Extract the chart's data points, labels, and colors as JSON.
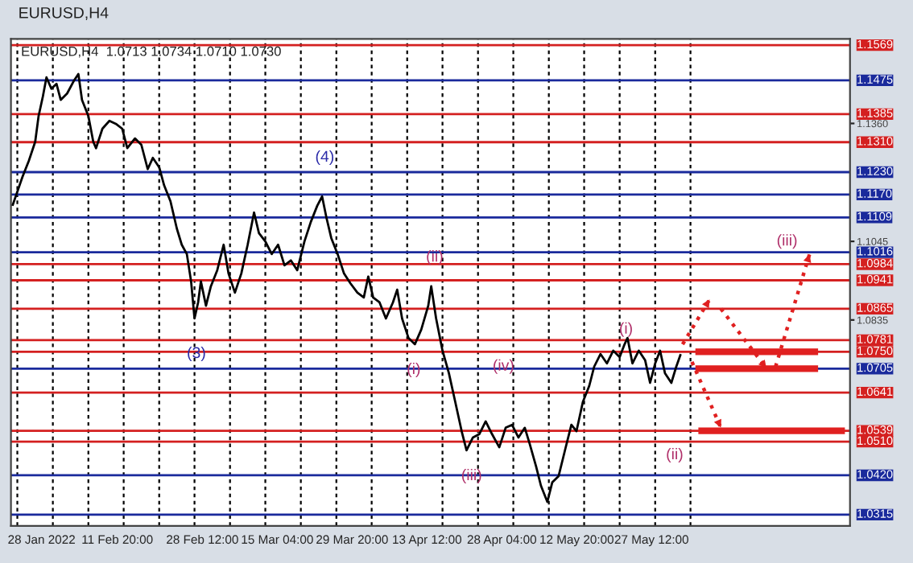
{
  "chart_data": {
    "type": "line",
    "title": "EURUSD,H4",
    "annotations": [
      "EURUSD,H4  1.0713 1.0734 1.0710 1.0730",
      "(4)",
      "(3)",
      "(ii)",
      "(i)",
      "(iv)",
      "(iii)",
      "(i)",
      "(ii)",
      "(iii)"
    ],
    "xlim": [
      "2022-01-22T00:00",
      "2022-07-05T09:00"
    ],
    "ylim": [
      1.0285,
      1.1586
    ],
    "xticks": [
      {
        "value": "2022-01-28T00:00",
        "label": "28 Jan 2022"
      },
      {
        "value": "2022-02-11T20:00",
        "label": "11 Feb 20:00"
      },
      {
        "value": "2022-02-28T12:00",
        "label": "28 Feb 12:00"
      },
      {
        "value": "2022-03-15T04:00",
        "label": "15 Mar 04:00"
      },
      {
        "value": "2022-03-29T20:00",
        "label": "29 Mar 20:00"
      },
      {
        "value": "2022-04-13T12:00",
        "label": "13 Apr 12:00"
      },
      {
        "value": "2022-04-28T04:00",
        "label": "28 Apr 04:00"
      },
      {
        "value": "2022-05-12T20:00",
        "label": "12 May 20:00"
      },
      {
        "value": "2022-05-27T12:00",
        "label": "27 May 12:00"
      },
      {
        "value": "2022-01-23T06:00",
        "label": null
      },
      {
        "value": "2022-01-30T05:00",
        "label": null
      },
      {
        "value": "2022-02-06T04:00",
        "label": null
      },
      {
        "value": "2022-02-13T02:00",
        "label": null
      },
      {
        "value": "2022-02-20T01:00",
        "label": null
      },
      {
        "value": "2022-02-26T23:00",
        "label": null
      },
      {
        "value": "2022-03-05T22:00",
        "label": null
      },
      {
        "value": "2022-03-12T20:00",
        "label": null
      },
      {
        "value": "2022-03-19T19:00",
        "label": null
      },
      {
        "value": "2022-03-26T18:00",
        "label": null
      },
      {
        "value": "2022-04-02T16:00",
        "label": null
      },
      {
        "value": "2022-04-09T15:00",
        "label": null
      },
      {
        "value": "2022-04-16T13:00",
        "label": null
      },
      {
        "value": "2022-04-23T12:00",
        "label": null
      },
      {
        "value": "2022-04-30T10:00",
        "label": null
      },
      {
        "value": "2022-05-07T09:00",
        "label": null
      },
      {
        "value": "2022-05-14T07:00",
        "label": null
      },
      {
        "value": "2022-05-21T06:00",
        "label": null
      },
      {
        "value": "2022-05-28T05:00",
        "label": null
      },
      {
        "value": "2022-06-04T03:00",
        "label": null
      }
    ],
    "yticks": [
      {
        "value": 1.136,
        "label": "1.1360"
      },
      1.1045,
      1.0835
    ],
    "grid": "x",
    "marker": "none",
    "ref_lines": [
      {
        "axis": "y",
        "value": 1.1569,
        "label": "1.1569",
        "color": "#d42020"
      },
      {
        "axis": "y",
        "value": 1.1475,
        "label": "1.1475",
        "color": "#1a2a9c"
      },
      {
        "axis": "y",
        "value": 1.1385,
        "label": "1.1385",
        "color": "#d42020"
      },
      {
        "axis": "y",
        "value": 1.131,
        "label": "1.1310",
        "color": "#d42020"
      },
      {
        "axis": "y",
        "value": 1.123,
        "label": "1.1230",
        "color": "#1a2a9c"
      },
      {
        "axis": "y",
        "value": 1.117,
        "label": "1.1170",
        "color": "#1a2a9c"
      },
      {
        "axis": "y",
        "value": 1.1109,
        "label": "1.1109",
        "color": "#1a2a9c"
      },
      {
        "axis": "y",
        "value": 1.1016,
        "label": "1.1016",
        "color": "#1a2a9c"
      },
      {
        "axis": "y",
        "value": 1.0984,
        "label": "1.0984",
        "color": "#d42020"
      },
      {
        "axis": "y",
        "value": 1.0941,
        "label": "1.0941",
        "color": "#d42020"
      },
      {
        "axis": "y",
        "value": 1.0865,
        "label": "1.0865",
        "color": "#d42020"
      },
      {
        "axis": "y",
        "value": 1.0781,
        "label": "1.0781",
        "color": "#d42020"
      },
      {
        "axis": "y",
        "value": 1.075,
        "label": "1.0750",
        "color": "#d42020"
      },
      {
        "axis": "y",
        "value": 1.0705,
        "label": "1.0705",
        "color": "#1a2a9c"
      },
      {
        "axis": "y",
        "value": 1.0641,
        "label": "1.0641",
        "color": "#d42020"
      },
      {
        "axis": "y",
        "value": 1.0539,
        "label": "1.0539",
        "color": "#d42020"
      },
      {
        "axis": "y",
        "value": 1.051,
        "label": "1.0510",
        "color": "#d42020"
      },
      {
        "axis": "y",
        "value": 1.042,
        "label": "1.0420",
        "color": "#1a2a9c"
      },
      {
        "axis": "y",
        "value": 1.0315,
        "label": "1.0315",
        "color": "#1a2a9c"
      }
    ],
    "series": [
      {
        "color": "#000000",
        "line_style": "solid",
        "x": [
          "2022-01-22T07:00",
          "2022-01-24T06:00",
          "2022-01-25T12:00",
          "2022-01-26T18:00",
          "2022-01-27T10:00",
          "2022-01-28T06:00",
          "2022-01-28T23:00",
          "2022-01-29T22:00",
          "2022-01-30T22:00",
          "2022-01-31T18:00",
          "2022-02-02T00:00",
          "2022-02-03T09:00",
          "2022-02-04T05:00",
          "2022-02-04T22:00",
          "2022-02-06T04:00",
          "2022-02-07T03:00",
          "2022-02-07T16:00",
          "2022-02-08T22:00",
          "2022-02-10T07:00",
          "2022-02-11T13:00",
          "2022-02-12T19:00",
          "2022-02-13T19:00",
          "2022-02-15T07:00",
          "2022-02-16T13:00",
          "2022-02-17T19:00",
          "2022-02-18T19:00",
          "2022-02-20T01:00",
          "2022-02-21T00:00",
          "2022-02-22T06:00",
          "2022-02-23T12:00",
          "2022-02-24T11:00",
          "2022-02-25T11:00",
          "2022-02-26T07:00",
          "2022-02-26T23:00",
          "2022-02-27T16:00",
          "2022-02-28T05:00",
          "2022-03-01T05:00",
          "2022-03-02T04:00",
          "2022-03-03T10:00",
          "2022-03-04T16:00",
          "2022-03-05T15:00",
          "2022-03-06T21:00",
          "2022-03-08T03:00",
          "2022-03-09T09:00",
          "2022-03-10T15:00",
          "2022-03-11T14:00",
          "2022-03-12T20:00",
          "2022-03-14T02:00",
          "2022-03-15T08:00",
          "2022-03-16T14:00",
          "2022-03-17T20:00",
          "2022-03-19T02:00",
          "2022-03-20T12:00",
          "2022-03-21T18:00",
          "2022-03-23T00:00",
          "2022-03-23T23:00",
          "2022-03-24T19:00",
          "2022-03-25T18:00",
          "2022-03-27T00:00",
          "2022-03-28T06:00",
          "2022-03-29T12:00",
          "2022-03-30T21:00",
          "2022-04-01T03:00",
          "2022-04-02T00:00",
          "2022-04-02T23:00",
          "2022-04-04T05:00",
          "2022-04-05T11:00",
          "2022-04-06T20:00",
          "2022-04-07T16:00",
          "2022-04-08T15:00",
          "2022-04-09T21:00",
          "2022-04-11T03:00",
          "2022-04-12T09:00",
          "2022-04-13T18:00",
          "2022-04-14T08:00",
          "2022-04-15T07:00",
          "2022-04-16T13:00",
          "2022-04-17T19:00",
          "2022-04-19T01:00",
          "2022-04-20T07:00",
          "2022-04-21T06:00",
          "2022-04-22T12:00",
          "2022-04-23T18:00",
          "2022-04-25T00:00",
          "2022-04-26T06:00",
          "2022-04-27T16:00",
          "2022-04-28T22:00",
          "2022-04-30T04:00",
          "2022-05-01T10:00",
          "2022-05-02T16:00",
          "2022-05-03T15:00",
          "2022-05-04T21:00",
          "2022-05-05T20:00",
          "2022-05-07T02:00",
          "2022-05-08T01:00",
          "2022-05-09T07:00",
          "2022-05-10T13:00",
          "2022-05-11T19:00",
          "2022-05-12T19:00",
          "2022-05-14T01:00",
          "2022-05-15T07:00",
          "2022-05-16T06:00",
          "2022-05-17T12:00",
          "2022-05-18T18:00",
          "2022-05-20T00:00",
          "2022-05-21T06:00",
          "2022-05-22T05:00",
          "2022-05-22T19:00",
          "2022-05-23T18:00",
          "2022-05-25T00:00",
          "2022-05-26T06:00",
          "2022-05-27T05:00",
          "2022-05-28T05:00",
          "2022-05-29T04:00",
          "2022-05-30T03:00",
          "2022-05-31T09:00",
          "2022-06-01T08:00",
          "2022-06-02T05:00"
        ],
        "values": [
          1.114,
          1.1217,
          1.126,
          1.1311,
          1.138,
          1.1432,
          1.1483,
          1.1453,
          1.1466,
          1.1423,
          1.144,
          1.1475,
          1.1492,
          1.1423,
          1.138,
          1.1311,
          1.1294,
          1.1346,
          1.1367,
          1.1359,
          1.1346,
          1.1294,
          1.132,
          1.1303,
          1.1238,
          1.1268,
          1.1243,
          1.1195,
          1.1152,
          1.1079,
          1.1036,
          1.1011,
          1.0938,
          1.0839,
          1.0882,
          1.0938,
          1.0873,
          1.0925,
          1.0968,
          1.1036,
          1.0959,
          1.0908,
          1.0959,
          1.1036,
          1.1122,
          1.1067,
          1.1045,
          1.1011,
          1.1036,
          1.0981,
          1.0994,
          1.0968,
          1.1045,
          1.1097,
          1.114,
          1.1165,
          1.1109,
          1.1054,
          1.1011,
          1.0959,
          1.0933,
          1.0908,
          1.0895,
          1.0951,
          1.0895,
          1.0882,
          1.0839,
          1.0882,
          1.0916,
          1.0839,
          1.0787,
          1.077,
          1.0809,
          1.0873,
          1.0925,
          1.0839,
          1.0753,
          1.0693,
          1.0616,
          1.0538,
          1.0487,
          1.0521,
          1.053,
          1.0564,
          1.053,
          1.0495,
          1.0547,
          1.0555,
          1.0521,
          1.0547,
          1.0504,
          1.0444,
          1.0392,
          1.0349,
          1.0401,
          1.0418,
          1.0487,
          1.0555,
          1.0538,
          1.0616,
          1.0659,
          1.071,
          1.0744,
          1.0719,
          1.0753,
          1.0736,
          1.077,
          1.0787,
          1.0719,
          1.0753,
          1.0727,
          1.0667,
          1.0719,
          1.0753,
          1.0693,
          1.0667,
          1.071,
          1.0744
        ]
      },
      {
        "color": "#e02020",
        "line_style": "dotted",
        "x": [
          "2022-06-02T14:00",
          "2022-06-07T21:00"
        ],
        "values": [
          1.077,
          1.089
        ]
      },
      {
        "color": "#e02020",
        "line_style": "dotted",
        "x": [
          "2022-06-10T02:00",
          "2022-06-19T00:00"
        ],
        "values": [
          1.0865,
          1.0706
        ]
      },
      {
        "color": "#e02020",
        "line_style": "dotted",
        "x": [
          "2022-06-20T19:00",
          "2022-06-27T11:00"
        ],
        "values": [
          1.071,
          1.1011
        ]
      },
      {
        "color": "#e02020",
        "line_style": "dotted",
        "x": [
          "2022-06-04T10:00",
          "2022-06-10T02:00"
        ],
        "values": [
          1.0723,
          1.0547
        ]
      },
      {
        "color": "#e02020",
        "line_style": "solid",
        "x": [
          "2022-06-05T02:00",
          "2022-06-29T03:00"
        ],
        "values": [
          1.075,
          1.075
        ]
      },
      {
        "color": "#e02020",
        "line_style": "solid",
        "x": [
          "2022-06-05T02:00",
          "2022-06-29T03:00"
        ],
        "values": [
          1.0705,
          1.0705
        ]
      },
      {
        "color": "#e02020",
        "line_style": "solid",
        "x": [
          "2022-06-05T16:00",
          "2022-07-04T09:00"
        ],
        "values": [
          1.0539,
          1.0539
        ]
      }
    ]
  }
}
